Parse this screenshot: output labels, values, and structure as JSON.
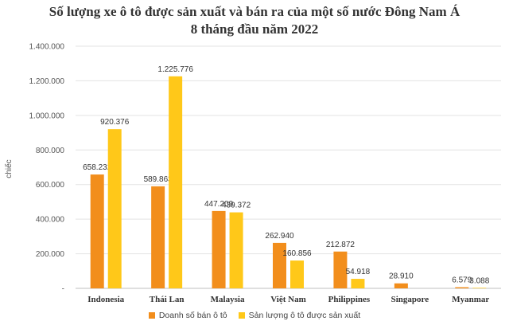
{
  "title_line1": "Số lượng xe ô tô được sản xuất và bán ra của một số nước Đông Nam Á",
  "title_line2": "8 tháng đầu năm 2022",
  "chart_data": {
    "type": "bar",
    "ylabel": "chiếc",
    "ylim": [
      0,
      1400000
    ],
    "yticks": [
      0,
      200000,
      400000,
      600000,
      800000,
      1000000,
      1200000,
      1400000
    ],
    "ytick_labels": [
      "-",
      "200.000",
      "400.000",
      "600.000",
      "800.000",
      "1.000.000",
      "1.200.000",
      "1.400.000"
    ],
    "grid": "horizontal",
    "legend_position": "bottom",
    "categories": [
      "Indonesia",
      "Thái Lan",
      "Malaysia",
      "Việt Nam",
      "Philippines",
      "Singapore",
      "Myanmar"
    ],
    "series": [
      {
        "name": "Doanh số bán ô tô",
        "color": "#F28E1C",
        "values": [
          658232,
          589863,
          447209,
          262940,
          212872,
          28910,
          6579
        ],
        "labels": [
          "658.232",
          "589.863",
          "447.209",
          "262.940",
          "212.872",
          "28.910",
          "6.579"
        ]
      },
      {
        "name": "Sản lượng ô tô được sản xuất",
        "color": "#FFC819",
        "values": [
          920376,
          1225776,
          439372,
          160856,
          54918,
          null,
          3088
        ],
        "labels": [
          "920.376",
          "1.225.776",
          "439.372",
          "160.856",
          "54.918",
          "",
          "3.088"
        ]
      }
    ]
  }
}
